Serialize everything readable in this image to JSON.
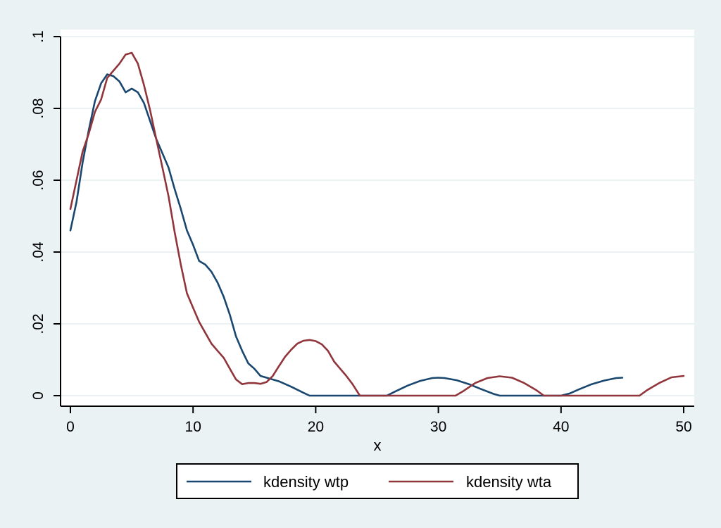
{
  "chart_data": {
    "type": "line",
    "title": "",
    "xlabel": "x",
    "ylabel": "",
    "xlim": [
      0,
      50
    ],
    "ylim": [
      0,
      0.1
    ],
    "x_ticks": [
      0,
      10,
      20,
      30,
      40,
      50
    ],
    "x_tick_labels": [
      "0",
      "10",
      "20",
      "30",
      "40",
      "50"
    ],
    "y_ticks": [
      0,
      0.02,
      0.04,
      0.06,
      0.08,
      0.1
    ],
    "y_tick_labels": [
      "0",
      ".02",
      ".04",
      ".06",
      ".08",
      ".1"
    ],
    "grid": true,
    "legend_position": "bottom",
    "colors": {
      "outer_background": "#eaf2f3",
      "plot_background": "#ffffff",
      "gridline": "#eaf2f3"
    },
    "series": [
      {
        "name": "kdensity wtp",
        "color": "#1a476f",
        "x": [
          0,
          0.5,
          1,
          1.5,
          2,
          2.5,
          3,
          3.5,
          4,
          4.5,
          5,
          5.5,
          6,
          6.5,
          7,
          7.5,
          8,
          8.5,
          9,
          9.5,
          10,
          10.5,
          11,
          11.5,
          12,
          12.5,
          13,
          13.5,
          14,
          14.5,
          15,
          15.5,
          16,
          17,
          18,
          19,
          19.5,
          20,
          21,
          22,
          23,
          24,
          25,
          25.8,
          26.5,
          27.5,
          28.5,
          29.5,
          30,
          30.5,
          31.5,
          32.5,
          33.5,
          34.5,
          35,
          36,
          37,
          38,
          39,
          40,
          40.7,
          41.5,
          42.5,
          43.5,
          44.5,
          45
        ],
        "values": [
          0.046,
          0.054,
          0.065,
          0.074,
          0.082,
          0.087,
          0.0895,
          0.089,
          0.0875,
          0.0845,
          0.0855,
          0.0845,
          0.0815,
          0.0765,
          0.0715,
          0.0675,
          0.0635,
          0.0575,
          0.052,
          0.046,
          0.042,
          0.0375,
          0.0365,
          0.0345,
          0.0315,
          0.0275,
          0.0225,
          0.0165,
          0.0125,
          0.009,
          0.0075,
          0.0055,
          0.005,
          0.004,
          0.0025,
          0.0008,
          0,
          0,
          0,
          0,
          0,
          0,
          0,
          0,
          0.0012,
          0.0028,
          0.0041,
          0.0049,
          0.005,
          0.0049,
          0.0043,
          0.0032,
          0.0018,
          0.0005,
          0,
          0,
          0,
          0,
          0,
          0,
          0.0006,
          0.0018,
          0.0032,
          0.0042,
          0.0049,
          0.005
        ]
      },
      {
        "name": "kdensity wta",
        "color": "#90353b",
        "x": [
          0,
          0.5,
          1,
          1.5,
          2,
          2.5,
          3,
          3.5,
          4,
          4.5,
          5,
          5.5,
          6,
          6.5,
          7,
          7.5,
          8,
          8.5,
          9,
          9.5,
          10,
          10.5,
          11,
          11.5,
          12,
          12.5,
          13,
          13.5,
          14,
          14.5,
          15,
          15.5,
          16,
          16.5,
          17,
          17.5,
          18,
          18.5,
          19,
          19.5,
          20,
          20.5,
          21,
          21.5,
          22,
          22.5,
          23,
          23.6,
          24.5,
          26,
          28,
          30,
          31.4,
          32,
          33,
          34,
          35,
          36,
          37,
          38,
          38.6,
          40,
          42,
          44,
          46.4,
          47,
          48,
          49,
          50
        ],
        "values": [
          0.052,
          0.06,
          0.068,
          0.073,
          0.079,
          0.0825,
          0.0885,
          0.0905,
          0.0925,
          0.095,
          0.0955,
          0.0925,
          0.0865,
          0.0795,
          0.0715,
          0.0635,
          0.0555,
          0.0455,
          0.0365,
          0.0285,
          0.0245,
          0.0205,
          0.0175,
          0.0145,
          0.0125,
          0.0105,
          0.0075,
          0.0045,
          0.0032,
          0.0035,
          0.0035,
          0.0033,
          0.0038,
          0.0055,
          0.0082,
          0.0108,
          0.0128,
          0.0145,
          0.0153,
          0.0155,
          0.0152,
          0.0143,
          0.0125,
          0.0095,
          0.0075,
          0.0055,
          0.0032,
          0,
          0,
          0,
          0,
          0,
          0,
          0.0012,
          0.0035,
          0.0049,
          0.0054,
          0.005,
          0.0035,
          0.0015,
          0,
          0,
          0,
          0,
          0,
          0.0015,
          0.0035,
          0.0051,
          0.0055
        ]
      }
    ]
  }
}
